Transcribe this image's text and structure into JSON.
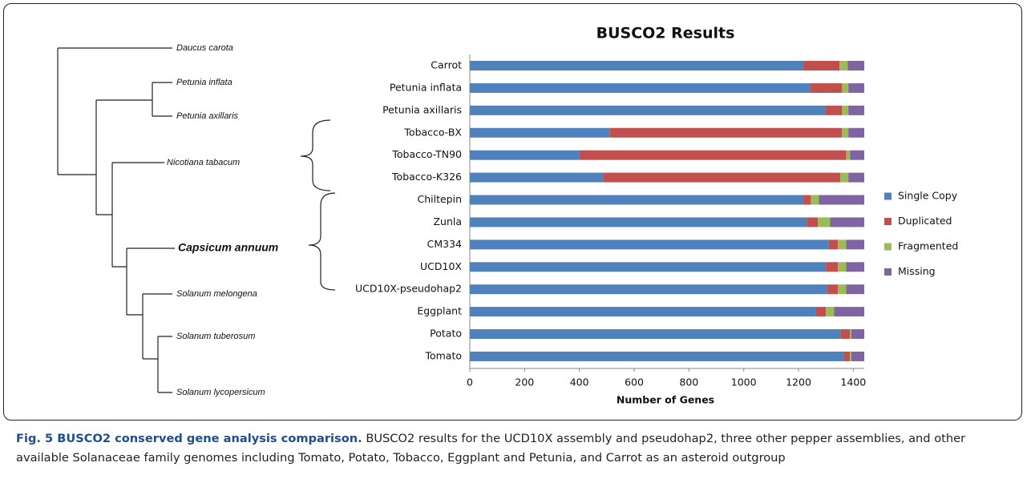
{
  "tree": {
    "leaves": [
      "Daucus carota",
      "Petunia inflata",
      "Petunia axillaris",
      "Nicotiana tabacum",
      "Capsicum annuum",
      "Solanum melongena",
      "Solanum tuberosum",
      "Solanum lycopersicum"
    ]
  },
  "chart_data": {
    "type": "bar",
    "orientation": "horizontal",
    "stacked": true,
    "title": "BUSCO2 Results",
    "x_label": "Number of Genes",
    "categories": [
      "Carrot",
      "Petunia inflata",
      "Petunia axillaris",
      "Tobacco-BX",
      "Tobacco-TN90",
      "Tobacco-K326",
      "Chiltepin",
      "Zunla",
      "CM334",
      "UCD10X",
      "UCD10X-pseudohap2",
      "Eggplant",
      "Potato",
      "Tomato"
    ],
    "series": [
      {
        "name": "Single Copy",
        "color": "#4f81bd",
        "values": [
          1215,
          1242,
          1297,
          510,
          400,
          487,
          1215,
          1230,
          1309,
          1300,
          1303,
          1262,
          1353,
          1365
        ]
      },
      {
        "name": "Duplicated",
        "color": "#c0504d",
        "values": [
          135,
          117,
          62,
          849,
          974,
          866,
          30,
          41,
          35,
          44,
          41,
          38,
          35,
          23
        ]
      },
      {
        "name": "Fragmented",
        "color": "#9bbb59",
        "values": [
          30,
          23,
          23,
          23,
          14,
          29,
          29,
          44,
          30,
          30,
          30,
          30,
          5,
          5
        ]
      },
      {
        "name": "Missing",
        "color": "#8064a2",
        "values": [
          60,
          58,
          58,
          58,
          52,
          58,
          166,
          125,
          66,
          66,
          66,
          110,
          47,
          47
        ]
      }
    ],
    "xlim": [
      0,
      1440
    ],
    "xticks": [
      0,
      200,
      400,
      600,
      800,
      1000,
      1200,
      1400
    ],
    "legend": "right"
  },
  "caption": {
    "label": "Fig. 5 BUSCO2 conserved gene analysis comparison.",
    "text": "BUSCO2 results for the UCD10X assembly and pseudohap2, three other pepper assemblies, and other available Solanaceae family genomes including Tomato, Potato, Tobacco, Eggplant and Petunia, and Carrot as an asteroid outgroup"
  }
}
